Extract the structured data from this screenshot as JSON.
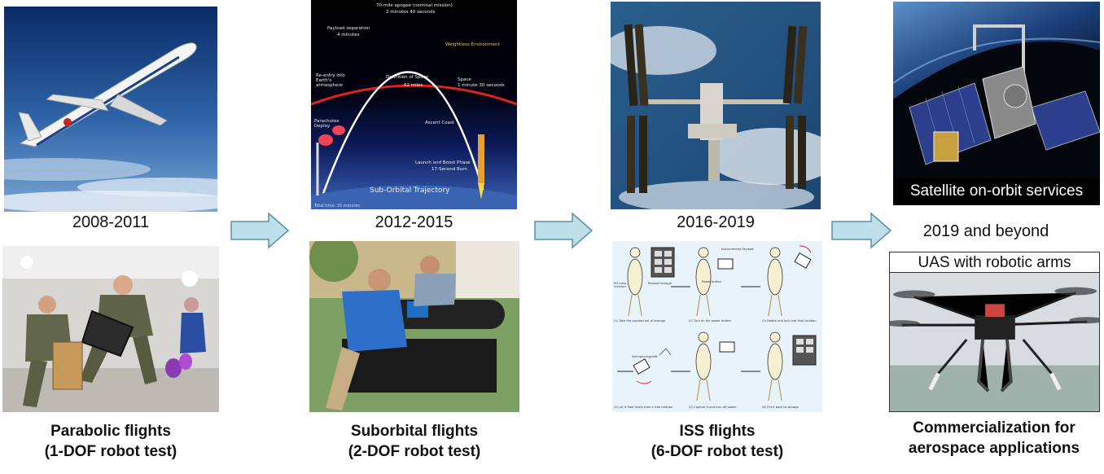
{
  "stages": [
    {
      "period": "2008-2011",
      "caption_line1": "Parabolic flights",
      "caption_line2": "(1-DOF robot test)"
    },
    {
      "period": "2012-2015",
      "caption_line1": "Suborbital flights",
      "caption_line2": "(2-DOF robot test)",
      "diagram": {
        "apogee": "70-mile apogee (nominal mission)",
        "apogee_time": "2 minutes 40 seconds",
        "payload_sep": "Payload separation",
        "payload_sep_time": "4 minutes",
        "weightless": "Weightless Environment",
        "reentry": "Re-entry into Earth's atmosphere",
        "space_def": "Definition of Space",
        "space_def_miles": "62 miles",
        "space": "Space",
        "space_time": "1 minute 30 seconds",
        "parachutes": "Parachutes Deploy",
        "ascent": "Ascent Coast",
        "launch": "Launch and Boost Phase",
        "burn": "17-Second Burn",
        "trajectory": "Sub-Orbital Trajectory",
        "total": "Total time: 15 minutes"
      }
    },
    {
      "period": "2016-2019",
      "caption_line1": "ISS flights",
      "caption_line2": "(6-DOF robot test)",
      "steps": [
        "(1) Take the payload out of storage",
        "(2) Turn on the power button",
        "(3) Rotate and lock into final location",
        "(4) Let it float freely from a free rotation",
        "(5) Capture it and turn off power",
        "(6) Put it back to storage"
      ],
      "step_notes": {
        "crew": "ISS crew member",
        "storage": "Payload storage",
        "power": "Power button",
        "payload": "Instrumented Payload",
        "free": "Self-spinning/drift"
      }
    },
    {
      "period": "2019 and beyond",
      "satellite_label": "Satellite on-orbit services",
      "uas_label": "UAS with robotic arms",
      "caption_line1": "Commercialization for",
      "caption_line2": "aerospace applications"
    }
  ],
  "colors": {
    "arrow_fill": "#bcdfe9",
    "arrow_stroke": "#5b8fa8"
  }
}
